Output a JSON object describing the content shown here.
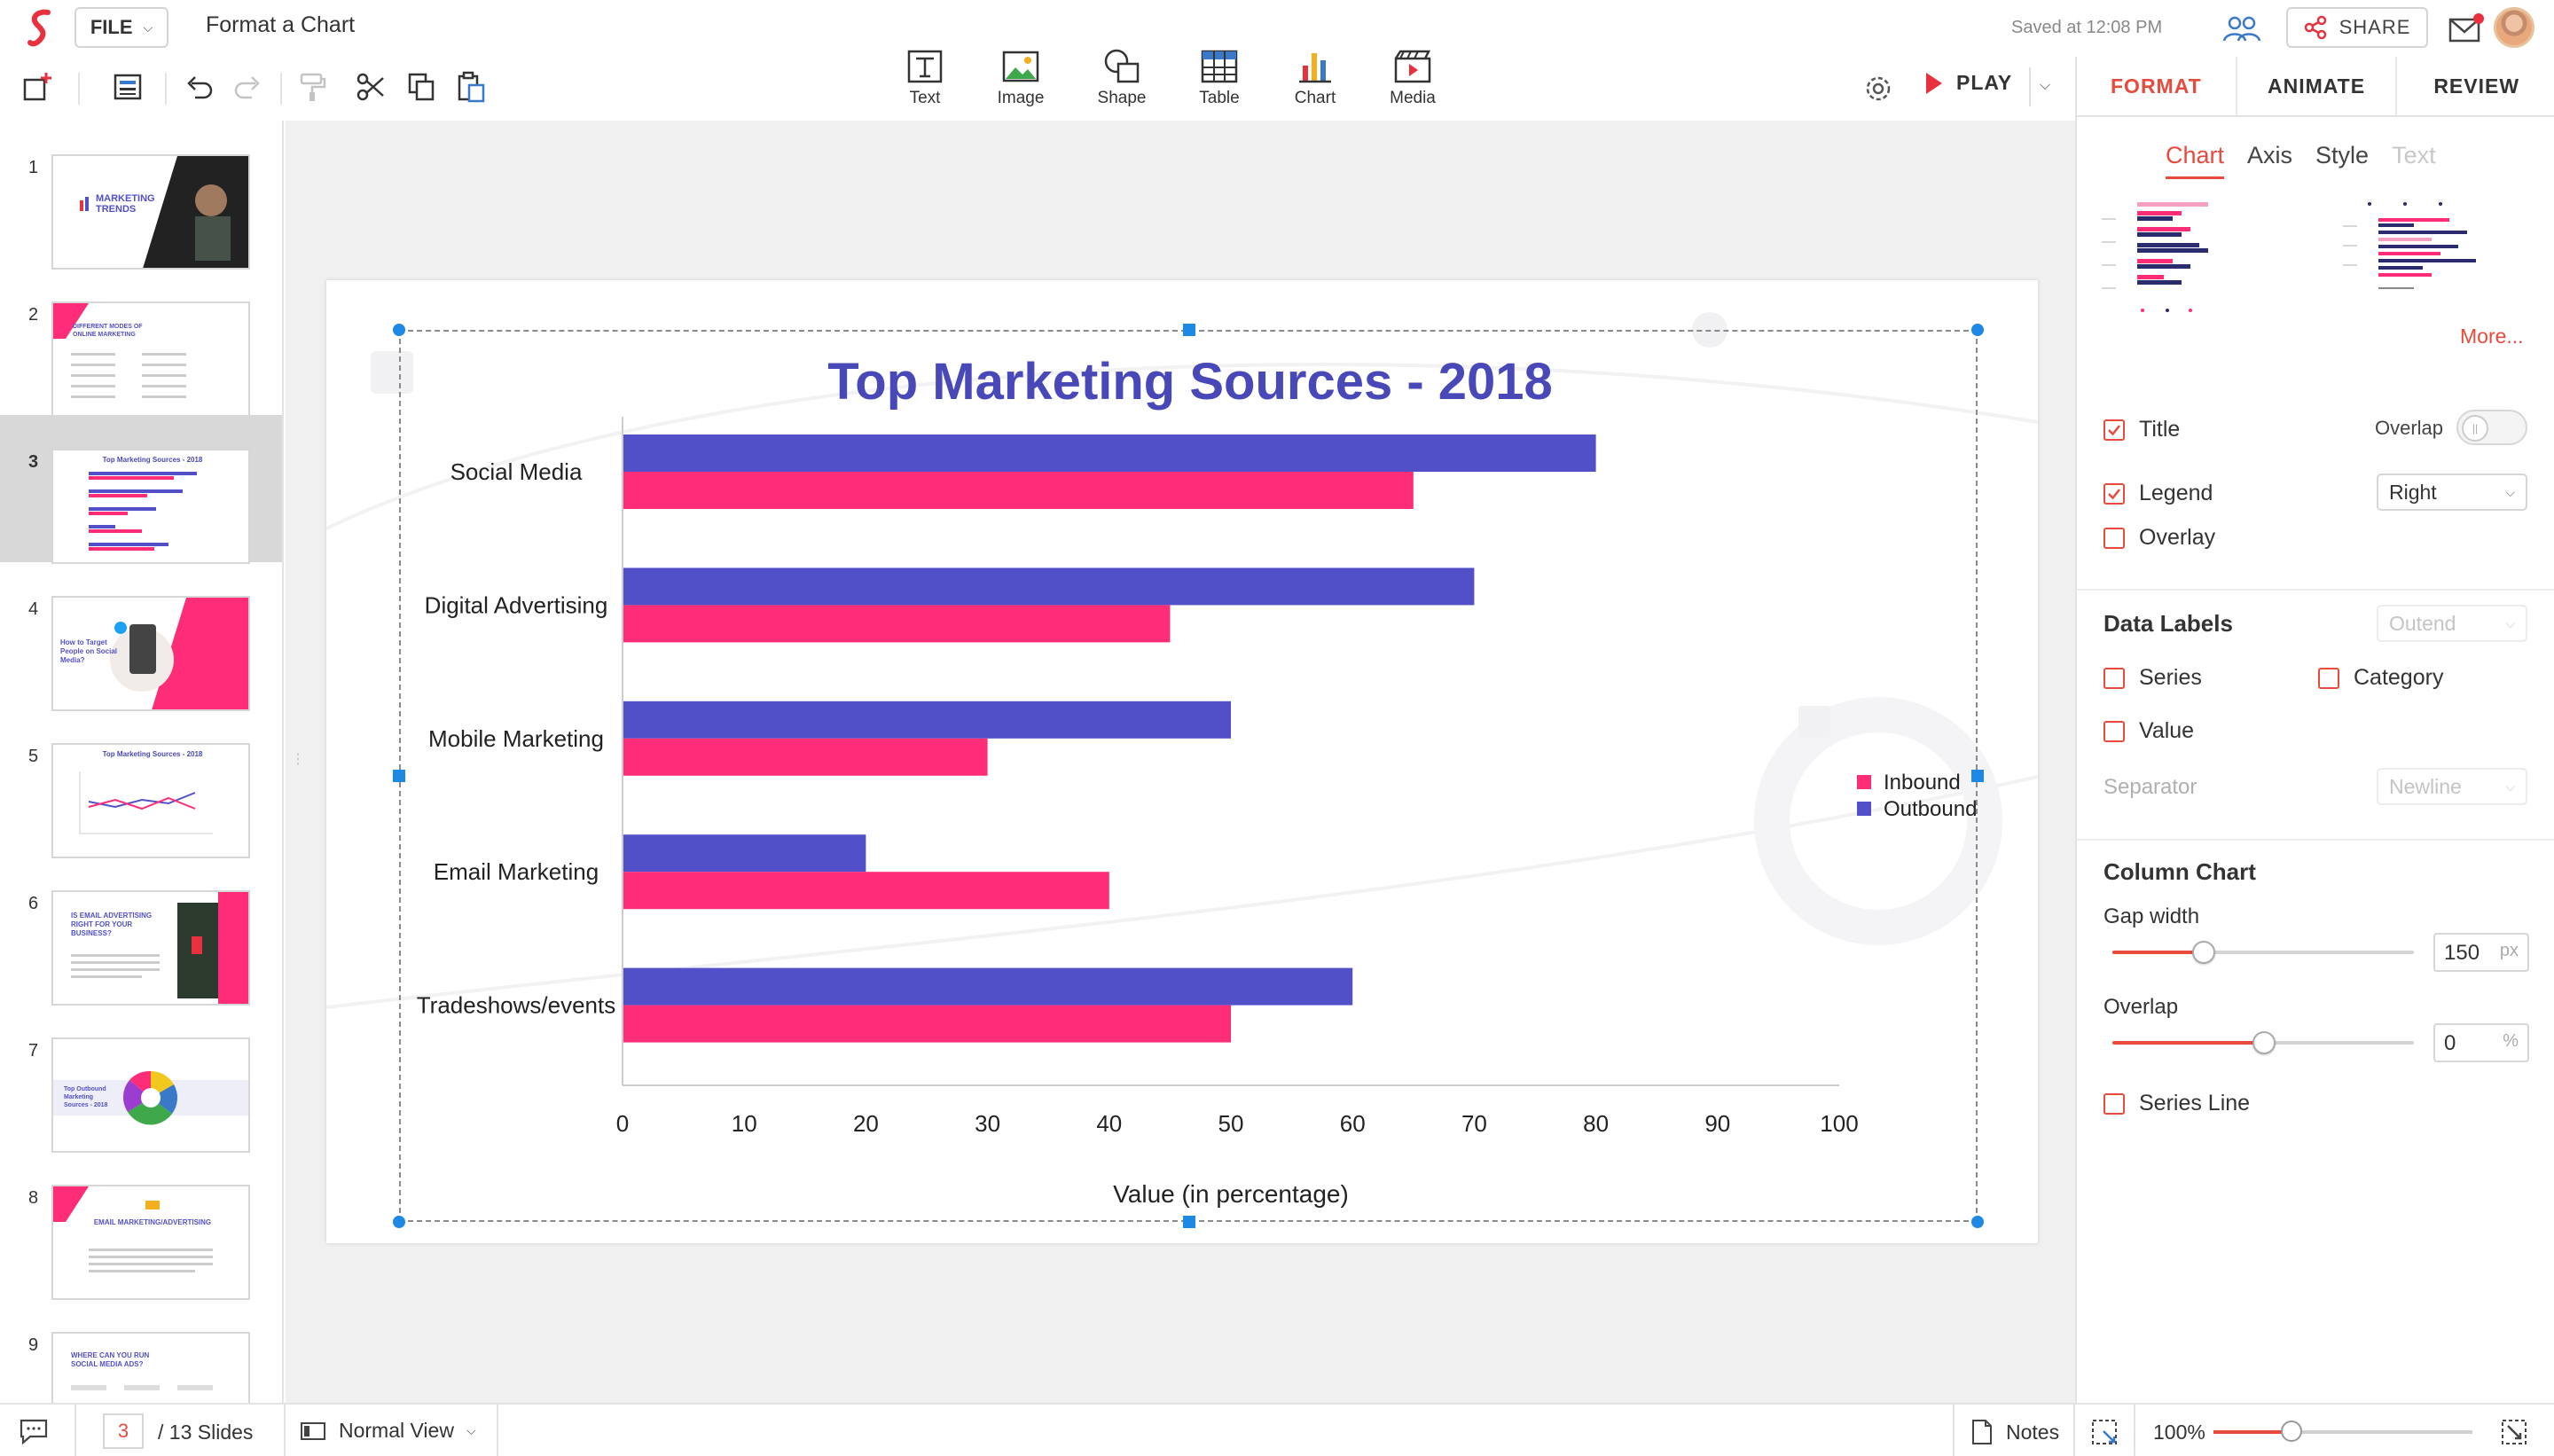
{
  "header": {
    "file_label": "FILE",
    "doc_title": "Format a Chart",
    "saved_text": "Saved at 12:08 PM",
    "share_label": "SHARE",
    "play_label": "PLAY"
  },
  "insert_tools": [
    {
      "label": "Text",
      "icon": "text-icon"
    },
    {
      "label": "Image",
      "icon": "image-icon"
    },
    {
      "label": "Shape",
      "icon": "shape-icon"
    },
    {
      "label": "Table",
      "icon": "table-icon"
    },
    {
      "label": "Chart",
      "icon": "chart-icon"
    },
    {
      "label": "Media",
      "icon": "media-icon"
    }
  ],
  "panel": {
    "tabs": [
      "FORMAT",
      "ANIMATE",
      "REVIEW"
    ],
    "active_tab": "FORMAT",
    "subtabs": [
      "Chart",
      "Axis",
      "Style",
      "Text"
    ],
    "active_subtab": "Chart",
    "more_label": "More...",
    "title_label": "Title",
    "title_checked": true,
    "overlap_label": "Overlap",
    "overlap_on": false,
    "legend_label": "Legend",
    "legend_checked": true,
    "legend_position": "Right",
    "overlay_label": "Overlay",
    "overlay_checked": false,
    "data_labels": {
      "title": "Data Labels",
      "position": "Outend",
      "series_label": "Series",
      "category_label": "Category",
      "value_label": "Value",
      "separator_label": "Separator",
      "separator_value": "Newline"
    },
    "column_chart": {
      "title": "Column Chart",
      "gap_width_label": "Gap width",
      "gap_width_value": "150",
      "gap_width_unit": "px",
      "gap_width_level": 0.3,
      "overlap_label": "Overlap",
      "overlap_value": "0",
      "overlap_unit": "%",
      "overlap_level": 0.5,
      "series_line_label": "Series Line"
    }
  },
  "slides": [
    {
      "num": "1",
      "text": "MARKETING TRENDS"
    },
    {
      "num": "2",
      "text": "DIFFERENT MODES OF ONLINE MARKETING"
    },
    {
      "num": "3",
      "text": "Top Marketing Sources - 2018"
    },
    {
      "num": "4",
      "text": "How to Target People on Social Media?"
    },
    {
      "num": "5",
      "text": "Top Marketing Sources - 2018"
    },
    {
      "num": "6",
      "text": "IS EMAIL ADVERTISING RIGHT FOR YOUR BUSINESS?"
    },
    {
      "num": "7",
      "text": "Top Outbound Marketing Sources - 2018"
    },
    {
      "num": "8",
      "text": "EMAIL MARKETING/ADVERTISING"
    },
    {
      "num": "9",
      "text": "WHERE CAN YOU RUN SOCIAL MEDIA ADS?"
    }
  ],
  "selected_slide": 3,
  "status": {
    "page_value": "3",
    "slides_count": "/ 13 Slides",
    "view_mode": "Normal View",
    "notes_label": "Notes",
    "zoom": "100%",
    "zoom_level": 0.3
  },
  "colors": {
    "accent": "#e84a3c",
    "outbound": "#5250c9",
    "inbound": "#ff2d78",
    "title": "#4848b8"
  },
  "chart_data": {
    "type": "bar",
    "orientation": "horizontal",
    "title": "Top Marketing Sources - 2018",
    "xlabel": "Value (in percentage)",
    "ylabel": "",
    "categories": [
      "Social Media",
      "Digital Advertising",
      "Mobile Marketing",
      "Email Marketing",
      "Tradeshows/events"
    ],
    "series": [
      {
        "name": "Outbound",
        "values": [
          80,
          70,
          50,
          20,
          60
        ]
      },
      {
        "name": "Inbound",
        "values": [
          65,
          45,
          30,
          40,
          50
        ]
      }
    ],
    "xlim": [
      0,
      100
    ],
    "xticks": [
      0,
      10,
      20,
      30,
      40,
      50,
      60,
      70,
      80,
      90,
      100
    ],
    "legend": {
      "position": "right",
      "entries": [
        "Inbound",
        "Outbound"
      ]
    },
    "grid": false
  }
}
